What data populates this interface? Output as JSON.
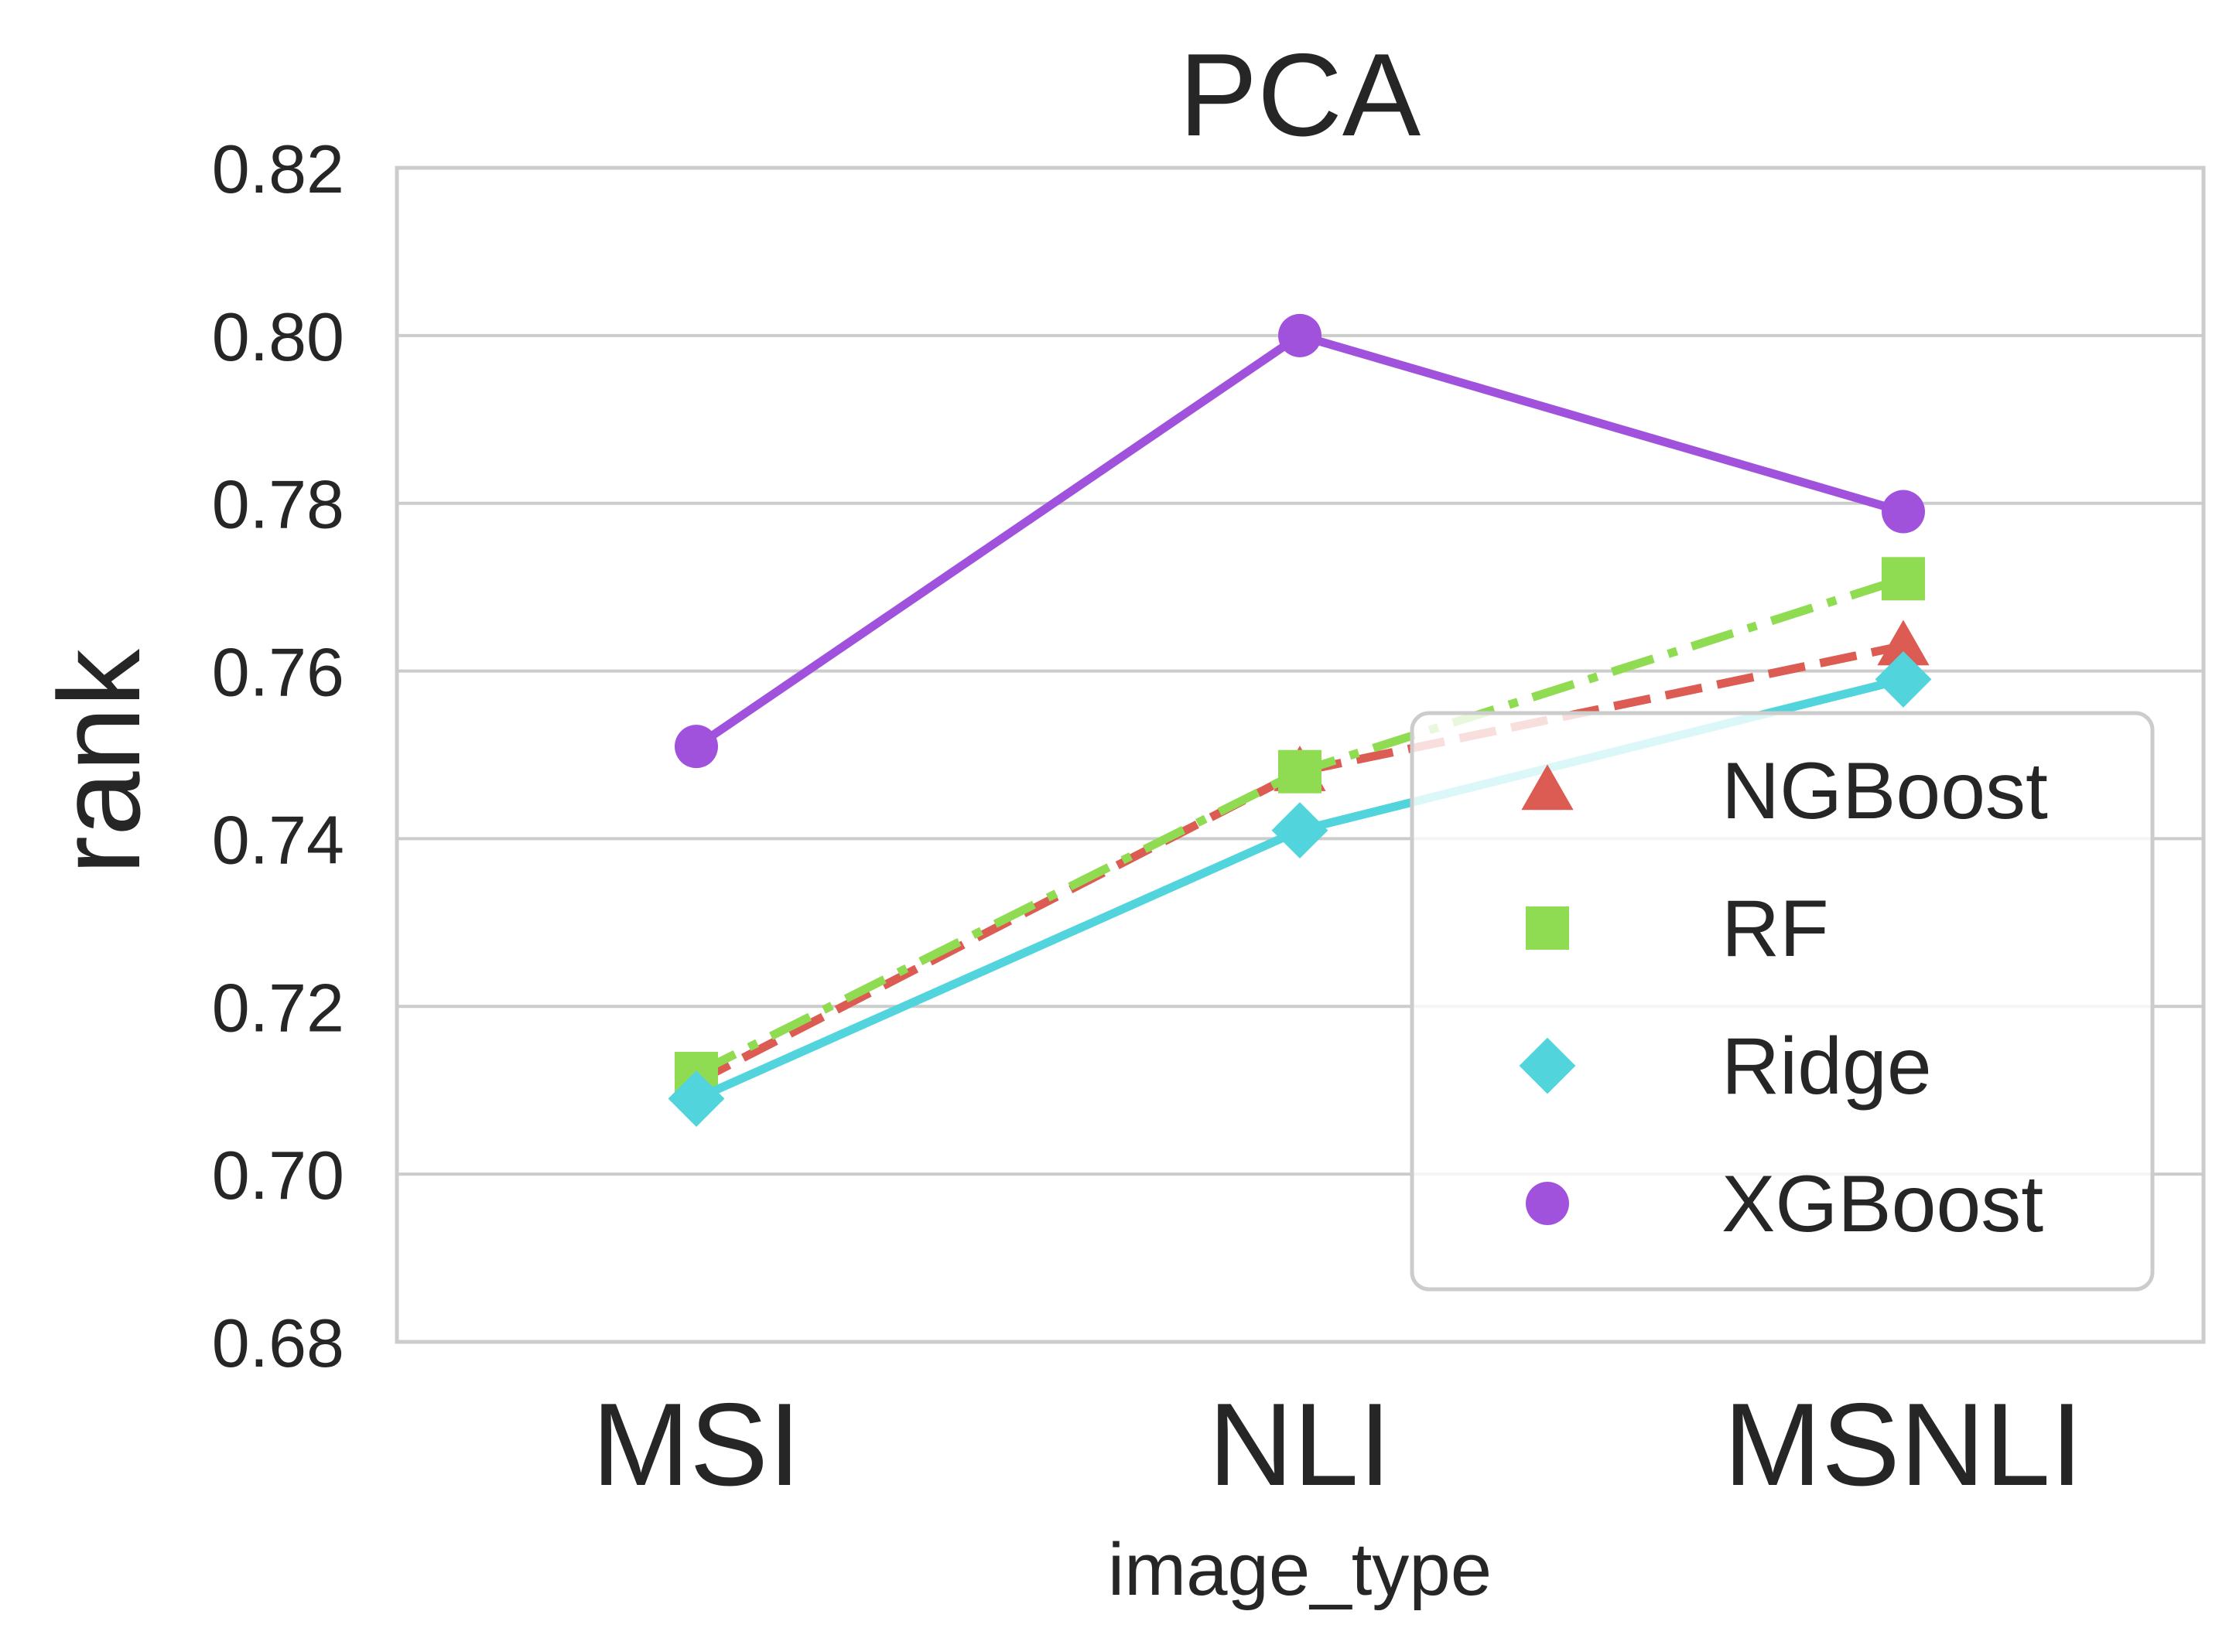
{
  "chart_data": {
    "type": "line",
    "title": "PCA",
    "xlabel": "image_type",
    "ylabel": "rank",
    "categories": [
      "MSI",
      "NLI",
      "MSNLI"
    ],
    "ylim": [
      0.68,
      0.82
    ],
    "yticks": [
      "0.68",
      "0.70",
      "0.72",
      "0.74",
      "0.76",
      "0.78",
      "0.80",
      "0.82"
    ],
    "grid": "horizontal",
    "legend_position": "lower right",
    "series": [
      {
        "name": "NGBoost",
        "values": [
          0.711,
          0.748,
          0.763
        ],
        "color": "#dc5b52",
        "marker": "triangle",
        "line_style": "dashed"
      },
      {
        "name": "RF",
        "values": [
          0.712,
          0.748,
          0.771
        ],
        "color": "#8fdc52",
        "marker": "square",
        "line_style": "dashdot"
      },
      {
        "name": "Ridge",
        "values": [
          0.709,
          0.741,
          0.759
        ],
        "color": "#52d4dc",
        "marker": "diamond",
        "line_style": "solid"
      },
      {
        "name": "XGBoost",
        "values": [
          0.751,
          0.8,
          0.779
        ],
        "color": "#a052dc",
        "marker": "circle",
        "line_style": "solid"
      }
    ]
  }
}
